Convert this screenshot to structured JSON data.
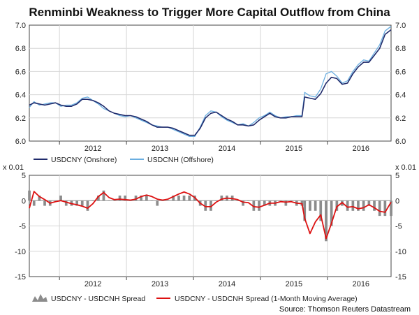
{
  "title": "Renminbi Weakness to Trigger More Capital Outflow from China",
  "source": "Source: Thomson Reuters Datastream",
  "colors": {
    "onshore": "#1f2a6b",
    "offshore": "#6aaee0",
    "spread_bar": "#8c8c8c",
    "moving_avg": "#dd1111",
    "frame": "#444444"
  },
  "chart_data": [
    {
      "type": "line",
      "title": "Renminbi Weakness to Trigger More Capital Outflow from China",
      "xlabel": "",
      "ylabel": "",
      "x_ticks": [
        "2012",
        "2013",
        "2014",
        "2015",
        "2016"
      ],
      "xlim": [
        2011.55,
        2016.95
      ],
      "ylim": [
        6.0,
        7.0
      ],
      "y_ticks": [
        "7.0",
        "6.8",
        "6.6",
        "6.4",
        "6.2",
        "6.0"
      ],
      "x": [
        2011.55,
        2011.62,
        2011.7,
        2011.78,
        2011.86,
        2011.94,
        2012.02,
        2012.1,
        2012.18,
        2012.26,
        2012.34,
        2012.42,
        2012.5,
        2012.58,
        2012.66,
        2012.74,
        2012.82,
        2012.9,
        2012.98,
        2013.06,
        2013.14,
        2013.22,
        2013.3,
        2013.38,
        2013.46,
        2013.54,
        2013.62,
        2013.7,
        2013.78,
        2013.86,
        2013.94,
        2014.02,
        2014.1,
        2014.18,
        2014.26,
        2014.34,
        2014.42,
        2014.5,
        2014.58,
        2014.66,
        2014.74,
        2014.82,
        2014.9,
        2014.98,
        2015.06,
        2015.14,
        2015.22,
        2015.3,
        2015.38,
        2015.46,
        2015.54,
        2015.62,
        2015.66,
        2015.74,
        2015.82,
        2015.9,
        2015.98,
        2016.06,
        2016.14,
        2016.22,
        2016.3,
        2016.38,
        2016.46,
        2016.54,
        2016.62,
        2016.7,
        2016.78,
        2016.86,
        2016.95
      ],
      "series": [
        {
          "name": "USDCNY (Onshore)",
          "values": [
            6.31,
            6.33,
            6.32,
            6.31,
            6.32,
            6.33,
            6.31,
            6.3,
            6.3,
            6.32,
            6.36,
            6.36,
            6.35,
            6.33,
            6.3,
            6.26,
            6.24,
            6.23,
            6.22,
            6.22,
            6.21,
            6.19,
            6.17,
            6.14,
            6.12,
            6.12,
            6.12,
            6.11,
            6.09,
            6.07,
            6.05,
            6.05,
            6.11,
            6.2,
            6.24,
            6.25,
            6.22,
            6.19,
            6.17,
            6.14,
            6.14,
            6.13,
            6.14,
            6.18,
            6.21,
            6.24,
            6.21,
            6.2,
            6.2,
            6.21,
            6.21,
            6.21,
            6.38,
            6.37,
            6.36,
            6.41,
            6.5,
            6.55,
            6.54,
            6.49,
            6.5,
            6.58,
            6.64,
            6.68,
            6.68,
            6.74,
            6.8,
            6.92,
            6.96
          ]
        },
        {
          "name": "USDCNH (Offshore)",
          "values": [
            6.29,
            6.34,
            6.31,
            6.32,
            6.33,
            6.33,
            6.3,
            6.31,
            6.31,
            6.33,
            6.37,
            6.38,
            6.35,
            6.32,
            6.28,
            6.26,
            6.24,
            6.22,
            6.21,
            6.22,
            6.2,
            6.18,
            6.16,
            6.14,
            6.13,
            6.12,
            6.12,
            6.1,
            6.08,
            6.06,
            6.04,
            6.04,
            6.12,
            6.22,
            6.26,
            6.25,
            6.21,
            6.18,
            6.16,
            6.14,
            6.15,
            6.13,
            6.16,
            6.2,
            6.22,
            6.25,
            6.22,
            6.2,
            6.21,
            6.21,
            6.22,
            6.22,
            6.42,
            6.39,
            6.38,
            6.45,
            6.58,
            6.6,
            6.56,
            6.5,
            6.52,
            6.6,
            6.66,
            6.7,
            6.69,
            6.76,
            6.83,
            6.95,
            6.99
          ]
        }
      ]
    },
    {
      "type": "area",
      "title": "",
      "xlabel": "",
      "ylabel": "x 0.01",
      "x_ticks": [
        "2012",
        "2013",
        "2014",
        "2015",
        "2016"
      ],
      "xlim": [
        2011.55,
        2016.95
      ],
      "ylim": [
        -15,
        5
      ],
      "y_ticks": [
        "5",
        "0",
        "-5",
        "-10",
        "-15"
      ],
      "x": [
        2011.55,
        2011.62,
        2011.7,
        2011.78,
        2011.86,
        2011.94,
        2012.02,
        2012.1,
        2012.18,
        2012.26,
        2012.34,
        2012.42,
        2012.5,
        2012.58,
        2012.66,
        2012.74,
        2012.82,
        2012.9,
        2012.98,
        2013.06,
        2013.14,
        2013.22,
        2013.3,
        2013.38,
        2013.46,
        2013.54,
        2013.62,
        2013.7,
        2013.78,
        2013.86,
        2013.94,
        2014.02,
        2014.1,
        2014.18,
        2014.26,
        2014.34,
        2014.42,
        2014.5,
        2014.58,
        2014.66,
        2014.74,
        2014.82,
        2014.9,
        2014.98,
        2015.06,
        2015.14,
        2015.22,
        2015.3,
        2015.38,
        2015.46,
        2015.54,
        2015.62,
        2015.66,
        2015.74,
        2015.82,
        2015.9,
        2015.98,
        2016.06,
        2016.14,
        2016.22,
        2016.3,
        2016.38,
        2016.46,
        2016.54,
        2016.62,
        2016.7,
        2016.78,
        2016.86,
        2016.95
      ],
      "series": [
        {
          "name": "USDCNY - USDCNH Spread",
          "values": [
            2,
            -1,
            1,
            -1,
            -1,
            0,
            1,
            -1,
            -1,
            -1,
            -1,
            -2,
            0,
            1,
            2,
            0,
            0,
            1,
            1,
            0,
            1,
            1,
            1,
            0,
            -1,
            0,
            0,
            1,
            1,
            1,
            1,
            1,
            -1,
            -2,
            -2,
            0,
            1,
            1,
            1,
            0,
            -1,
            0,
            -2,
            -2,
            -1,
            -1,
            -1,
            0,
            -1,
            0,
            -1,
            -1,
            -4,
            -2,
            -2,
            -4,
            -8,
            -5,
            -2,
            -1,
            -2,
            -2,
            -2,
            -2,
            -1,
            -2,
            -3,
            -3,
            -3
          ]
        },
        {
          "name": "USDCNY - USDCNH Spread (1-Month Moving Average)",
          "values": [
            -1.5,
            1.8,
            0.8,
            0.2,
            -0.5,
            -0.2,
            0,
            -0.3,
            -0.6,
            -0.8,
            -1.1,
            -1.5,
            -0.6,
            0.8,
            1.6,
            0.6,
            0.2,
            0.3,
            0.2,
            0.1,
            0.3,
            0.8,
            1.1,
            0.8,
            0.3,
            0.1,
            0.3,
            0.8,
            1.3,
            1.7,
            1.3,
            0.6,
            -0.5,
            -1.2,
            -1.2,
            -0.3,
            0.3,
            0.5,
            0.4,
            0.2,
            -0.3,
            -0.4,
            -1.2,
            -1.3,
            -0.9,
            -0.5,
            -0.5,
            -0.2,
            -0.3,
            -0.2,
            -0.5,
            -0.6,
            -3.5,
            -6.5,
            -4.2,
            -2.8,
            -7.5,
            -4.5,
            -1.2,
            -0.4,
            -1.3,
            -1.2,
            -1.6,
            -1.4,
            -0.8,
            -1.4,
            -2.1,
            -2.3,
            -0.3
          ]
        }
      ]
    }
  ],
  "legend_top": [
    {
      "label": "USDCNY (Onshore)"
    },
    {
      "label": "USDCNH (Offshore)"
    }
  ],
  "legend_bottom": [
    {
      "label": "USDCNY - USDCNH Spread"
    },
    {
      "label": "USDCNY - USDCNH Spread (1-Month Moving Average)"
    }
  ],
  "scale_label_left": "x 0.01",
  "scale_label_right": "x 0.01"
}
